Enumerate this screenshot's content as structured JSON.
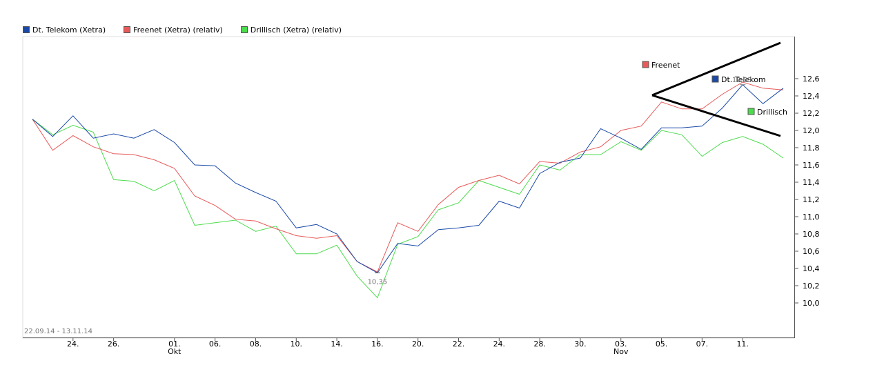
{
  "chart_data": {
    "type": "line",
    "date_range": "22.09.14 - 13.11.14",
    "x_tick_labels": [
      "24.",
      "26.",
      "01.",
      "06.",
      "08.",
      "10.",
      "14.",
      "16.",
      "20.",
      "22.",
      "24.",
      "28.",
      "30.",
      "03.",
      "05.",
      "07.",
      "11."
    ],
    "month_labels": [
      "Okt",
      "Nov"
    ],
    "ylim": [
      9.75,
      12.7
    ],
    "y_ticks": [
      "10,0",
      "10,2",
      "10,4",
      "10,6",
      "10,8",
      "11,0",
      "11,2",
      "11,4",
      "11,6",
      "11,8",
      "12,0",
      "12,2",
      "12,4",
      "12,6"
    ],
    "grid": false,
    "legend_position": "top-left",
    "series": [
      {
        "name": "Dt. Telekom (Xetra)",
        "end_label": "Dt. Telekom",
        "color": "#1a49a8",
        "values": [
          12.13,
          11.93,
          12.17,
          11.91,
          11.96,
          11.91,
          12.01,
          11.86,
          11.6,
          11.59,
          11.39,
          11.28,
          11.18,
          10.87,
          10.91,
          10.8,
          10.48,
          10.35,
          10.69,
          10.66,
          10.85,
          10.87,
          10.9,
          11.18,
          11.1,
          11.5,
          11.63,
          11.68,
          12.02,
          11.91,
          11.78,
          12.03,
          12.03,
          12.05,
          12.26,
          12.53,
          12.31,
          12.49
        ]
      },
      {
        "name": "Freenet (Xetra) (relativ)",
        "end_label": "Freenet",
        "color": "#e85a5a",
        "values": [
          12.13,
          11.77,
          11.94,
          11.81,
          11.73,
          11.72,
          11.66,
          11.56,
          11.24,
          11.13,
          10.97,
          10.95,
          10.86,
          10.78,
          10.75,
          10.78,
          10.48,
          10.36,
          10.93,
          10.83,
          11.14,
          11.34,
          11.42,
          11.48,
          11.38,
          11.64,
          11.62,
          11.75,
          11.81,
          12.0,
          12.05,
          12.33,
          12.25,
          12.25,
          12.42,
          12.56,
          12.49,
          12.47
        ]
      },
      {
        "name": "Drillisch (Xetra) (relativ)",
        "end_label": "Drillisch",
        "color": "#4ddc4d",
        "values": [
          12.13,
          11.95,
          12.06,
          11.98,
          11.43,
          11.41,
          11.3,
          11.42,
          10.9,
          10.93,
          10.96,
          10.83,
          10.89,
          10.57,
          10.57,
          10.67,
          10.31,
          10.06,
          10.68,
          10.77,
          11.08,
          11.16,
          11.42,
          11.34,
          11.26,
          11.6,
          11.54,
          11.72,
          11.72,
          11.87,
          11.77,
          12.0,
          11.95,
          11.7,
          11.86,
          11.93,
          11.84,
          11.68
        ]
      }
    ],
    "annotations": {
      "max_label": "12,53",
      "min_label": "10,35"
    }
  }
}
